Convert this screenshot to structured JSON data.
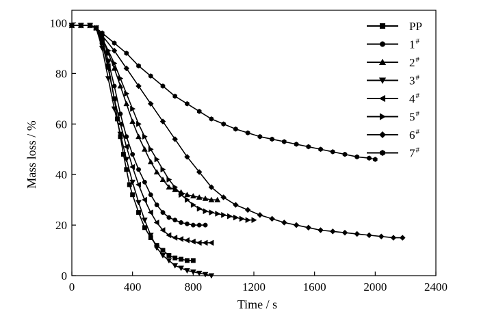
{
  "chart_data": {
    "type": "line",
    "xlabel": "Time / s",
    "ylabel": "Mass loss / %",
    "xlim": [
      0,
      2400
    ],
    "ylim": [
      0,
      105
    ],
    "xticks": [
      "0",
      "400",
      "800",
      "1200",
      "1600",
      "2000",
      "2400"
    ],
    "yticks": [
      "0",
      "20",
      "40",
      "60",
      "80",
      "100"
    ],
    "grid": false,
    "legend_position": "top-right",
    "series": [
      {
        "name": "PP",
        "sup": "",
        "marker": "square",
        "x": [
          0,
          60,
          120,
          160,
          200,
          240,
          280,
          300,
          320,
          340,
          360,
          380,
          400,
          440,
          480,
          520,
          560,
          600,
          640,
          680,
          720,
          760,
          800
        ],
        "y": [
          99,
          99,
          99,
          98,
          92,
          83,
          70,
          62,
          55,
          48,
          42,
          36,
          32,
          25,
          19,
          15,
          12,
          10,
          8,
          7,
          6.5,
          6,
          6
        ]
      },
      {
        "name": "1",
        "sup": "#",
        "marker": "circle",
        "x": [
          0,
          60,
          120,
          160,
          200,
          240,
          280,
          320,
          360,
          400,
          440,
          480,
          520,
          560,
          600,
          640,
          680,
          720,
          760,
          800,
          840,
          880
        ],
        "y": [
          99,
          99,
          99,
          98,
          93,
          85,
          75,
          64,
          55,
          48,
          42,
          37,
          32,
          28,
          25,
          23,
          22,
          21,
          20.5,
          20,
          20,
          20
        ]
      },
      {
        "name": "2",
        "sup": "#",
        "marker": "triangle-up",
        "x": [
          0,
          60,
          120,
          160,
          200,
          240,
          280,
          320,
          360,
          400,
          440,
          480,
          520,
          560,
          600,
          640,
          680,
          720,
          760,
          800,
          840,
          880,
          920,
          960
        ],
        "y": [
          99,
          99,
          99,
          98,
          94,
          88,
          82,
          75,
          68,
          61,
          55,
          50,
          45,
          41,
          38,
          35,
          34,
          33,
          32,
          31.5,
          31,
          30.5,
          30,
          30
        ]
      },
      {
        "name": "3",
        "sup": "#",
        "marker": "triangle-down",
        "x": [
          0,
          60,
          120,
          160,
          200,
          240,
          280,
          320,
          360,
          400,
          440,
          480,
          520,
          560,
          600,
          640,
          680,
          720,
          760,
          800,
          840,
          880,
          920
        ],
        "y": [
          99,
          99,
          99,
          98,
          90,
          78,
          66,
          56,
          46,
          37,
          29,
          22,
          16,
          11,
          8,
          6,
          4,
          3,
          2,
          1.5,
          1,
          0.5,
          0
        ]
      },
      {
        "name": "4",
        "sup": "#",
        "marker": "triangle-left",
        "x": [
          0,
          60,
          120,
          160,
          200,
          240,
          280,
          320,
          360,
          400,
          440,
          480,
          520,
          560,
          600,
          640,
          680,
          720,
          760,
          800,
          840,
          880,
          920
        ],
        "y": [
          99,
          99,
          99,
          98,
          92,
          82,
          70,
          60,
          51,
          43,
          36,
          30,
          25,
          21,
          18,
          16,
          15,
          14.5,
          14,
          13.5,
          13,
          13,
          13
        ]
      },
      {
        "name": "5",
        "sup": "#",
        "marker": "triangle-right",
        "x": [
          0,
          60,
          120,
          160,
          200,
          240,
          280,
          320,
          360,
          400,
          440,
          480,
          520,
          560,
          600,
          640,
          680,
          720,
          760,
          800,
          840,
          880,
          920,
          960,
          1000,
          1040,
          1080,
          1120,
          1160,
          1200
        ],
        "y": [
          99,
          99,
          99,
          98,
          94,
          89,
          84,
          78,
          72,
          66,
          60,
          55,
          50,
          46,
          42,
          38,
          35,
          32,
          30,
          28,
          26.5,
          25.5,
          25,
          24.5,
          24,
          23.5,
          23,
          22.5,
          22,
          22
        ]
      },
      {
        "name": "6",
        "sup": "#",
        "marker": "diamond",
        "x": [
          0,
          60,
          120,
          160,
          200,
          280,
          360,
          440,
          520,
          600,
          680,
          760,
          840,
          920,
          1000,
          1080,
          1160,
          1240,
          1320,
          1400,
          1480,
          1560,
          1640,
          1720,
          1800,
          1880,
          1960,
          2040,
          2120,
          2180
        ],
        "y": [
          99,
          99,
          99,
          98,
          95,
          89,
          82,
          75,
          68,
          61,
          54,
          47,
          41,
          35,
          31,
          28,
          26,
          24,
          22.5,
          21,
          20,
          19,
          18,
          17.5,
          17,
          16.5,
          16,
          15.5,
          15,
          15
        ]
      },
      {
        "name": "7",
        "sup": "#",
        "marker": "hexagon",
        "x": [
          0,
          60,
          120,
          160,
          200,
          280,
          360,
          440,
          520,
          600,
          680,
          760,
          840,
          920,
          1000,
          1080,
          1160,
          1240,
          1320,
          1400,
          1480,
          1560,
          1640,
          1720,
          1800,
          1880,
          1960,
          2000
        ],
        "y": [
          99,
          99,
          99,
          98,
          96,
          92,
          88,
          83,
          79,
          75,
          71,
          68,
          65,
          62,
          60,
          58,
          56.5,
          55,
          54,
          53,
          52,
          51,
          50,
          49,
          48,
          47,
          46.5,
          46
        ]
      }
    ]
  }
}
